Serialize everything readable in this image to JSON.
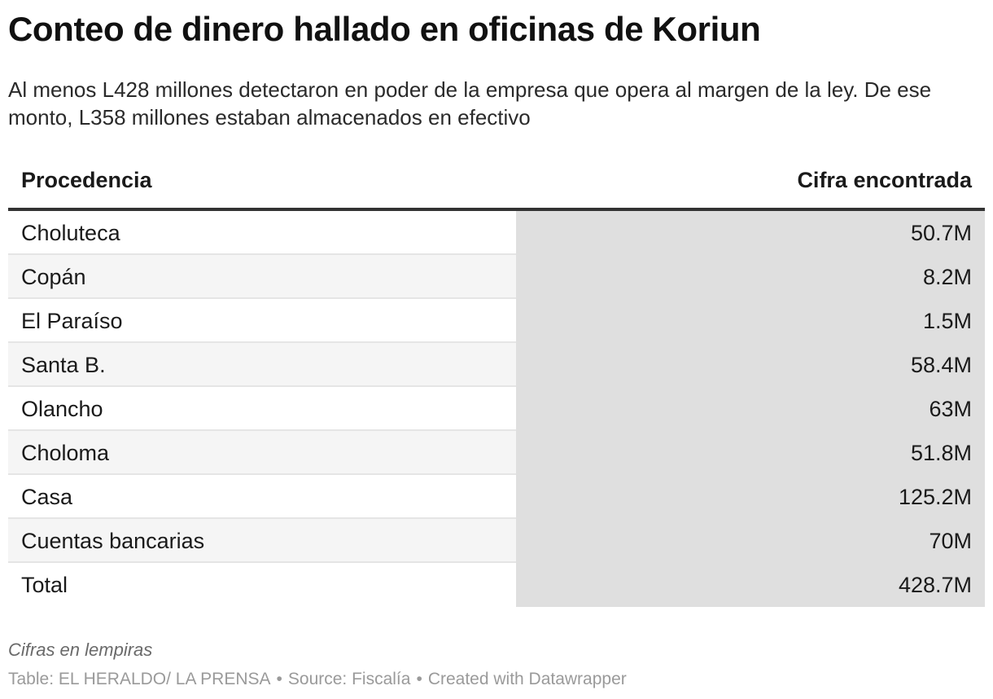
{
  "chart_data": {
    "type": "table",
    "title": "Conteo de dinero hallado en oficinas de Koriun",
    "subtitle": "Al menos L428 millones detectaron en poder de la empresa que opera al margen de la ley. De ese monto, L358 millones estaban almacenados en efectivo",
    "columns": [
      "Procedencia",
      "Cifra encontrada"
    ],
    "rows": [
      {
        "name": "Choluteca",
        "value": "50.7M"
      },
      {
        "name": "Copán",
        "value": "8.2M"
      },
      {
        "name": "El Paraíso",
        "value": "1.5M"
      },
      {
        "name": "Santa B.",
        "value": "58.4M"
      },
      {
        "name": "Olancho",
        "value": "63M"
      },
      {
        "name": "Choloma",
        "value": "51.8M"
      },
      {
        "name": "Casa",
        "value": "125.2M"
      },
      {
        "name": "Cuentas bancarias",
        "value": "70M"
      },
      {
        "name": "Total",
        "value": "428.7M"
      }
    ],
    "notes": "Cifras en lempiras",
    "footer": {
      "table_credit": "Table: EL HERALDO/ LA PRENSA",
      "source": "Source: Fiscalía",
      "created_with": "Created with Datawrapper"
    }
  },
  "colors": {
    "value_column_bg": "#dfdfdf",
    "stripe_bg": "#f5f5f5",
    "header_rule": "#333333",
    "footer_text": "#9a9a9a"
  }
}
